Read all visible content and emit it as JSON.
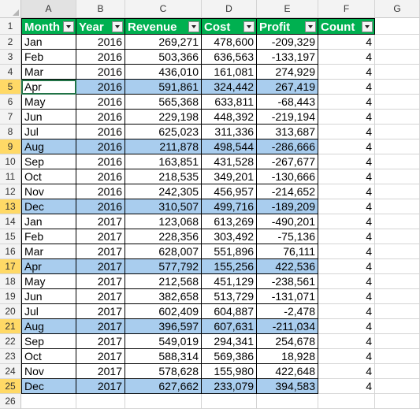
{
  "columns": [
    "A",
    "B",
    "C",
    "D",
    "E",
    "F",
    "G"
  ],
  "headers": [
    "Month",
    "Year",
    "Revenue",
    "Cost",
    "Profit",
    "Count"
  ],
  "highlight_color": "#a9cdee",
  "header_fill": "#00b050",
  "active_cell": "A5",
  "highlighted_rows": [
    5,
    9,
    13,
    17,
    21,
    25
  ],
  "rows": [
    {
      "n": 2,
      "month": "Jan",
      "year": "2016",
      "revenue": "269,271",
      "cost": "478,600",
      "profit": "-209,329",
      "count": "4"
    },
    {
      "n": 3,
      "month": "Feb",
      "year": "2016",
      "revenue": "503,366",
      "cost": "636,563",
      "profit": "-133,197",
      "count": "4"
    },
    {
      "n": 4,
      "month": "Mar",
      "year": "2016",
      "revenue": "436,010",
      "cost": "161,081",
      "profit": "274,929",
      "count": "4"
    },
    {
      "n": 5,
      "month": "Apr",
      "year": "2016",
      "revenue": "591,861",
      "cost": "324,442",
      "profit": "267,419",
      "count": "4"
    },
    {
      "n": 6,
      "month": "May",
      "year": "2016",
      "revenue": "565,368",
      "cost": "633,811",
      "profit": "-68,443",
      "count": "4"
    },
    {
      "n": 7,
      "month": "Jun",
      "year": "2016",
      "revenue": "229,198",
      "cost": "448,392",
      "profit": "-219,194",
      "count": "4"
    },
    {
      "n": 8,
      "month": "Jul",
      "year": "2016",
      "revenue": "625,023",
      "cost": "311,336",
      "profit": "313,687",
      "count": "4"
    },
    {
      "n": 9,
      "month": "Aug",
      "year": "2016",
      "revenue": "211,878",
      "cost": "498,544",
      "profit": "-286,666",
      "count": "4"
    },
    {
      "n": 10,
      "month": "Sep",
      "year": "2016",
      "revenue": "163,851",
      "cost": "431,528",
      "profit": "-267,677",
      "count": "4"
    },
    {
      "n": 11,
      "month": "Oct",
      "year": "2016",
      "revenue": "218,535",
      "cost": "349,201",
      "profit": "-130,666",
      "count": "4"
    },
    {
      "n": 12,
      "month": "Nov",
      "year": "2016",
      "revenue": "242,305",
      "cost": "456,957",
      "profit": "-214,652",
      "count": "4"
    },
    {
      "n": 13,
      "month": "Dec",
      "year": "2016",
      "revenue": "310,507",
      "cost": "499,716",
      "profit": "-189,209",
      "count": "4"
    },
    {
      "n": 14,
      "month": "Jan",
      "year": "2017",
      "revenue": "123,068",
      "cost": "613,269",
      "profit": "-490,201",
      "count": "4"
    },
    {
      "n": 15,
      "month": "Feb",
      "year": "2017",
      "revenue": "228,356",
      "cost": "303,492",
      "profit": "-75,136",
      "count": "4"
    },
    {
      "n": 16,
      "month": "Mar",
      "year": "2017",
      "revenue": "628,007",
      "cost": "551,896",
      "profit": "76,111",
      "count": "4"
    },
    {
      "n": 17,
      "month": "Apr",
      "year": "2017",
      "revenue": "577,792",
      "cost": "155,256",
      "profit": "422,536",
      "count": "4"
    },
    {
      "n": 18,
      "month": "May",
      "year": "2017",
      "revenue": "212,568",
      "cost": "451,129",
      "profit": "-238,561",
      "count": "4"
    },
    {
      "n": 19,
      "month": "Jun",
      "year": "2017",
      "revenue": "382,658",
      "cost": "513,729",
      "profit": "-131,071",
      "count": "4"
    },
    {
      "n": 20,
      "month": "Jul",
      "year": "2017",
      "revenue": "602,409",
      "cost": "604,887",
      "profit": "-2,478",
      "count": "4"
    },
    {
      "n": 21,
      "month": "Aug",
      "year": "2017",
      "revenue": "396,597",
      "cost": "607,631",
      "profit": "-211,034",
      "count": "4"
    },
    {
      "n": 22,
      "month": "Sep",
      "year": "2017",
      "revenue": "549,019",
      "cost": "294,341",
      "profit": "254,678",
      "count": "4"
    },
    {
      "n": 23,
      "month": "Oct",
      "year": "2017",
      "revenue": "588,314",
      "cost": "569,386",
      "profit": "18,928",
      "count": "4"
    },
    {
      "n": 24,
      "month": "Nov",
      "year": "2017",
      "revenue": "578,628",
      "cost": "155,980",
      "profit": "422,648",
      "count": "4"
    },
    {
      "n": 25,
      "month": "Dec",
      "year": "2017",
      "revenue": "627,662",
      "cost": "233,079",
      "profit": "394,583",
      "count": "4"
    }
  ],
  "extra_row_headers": [
    "1",
    "26"
  ]
}
